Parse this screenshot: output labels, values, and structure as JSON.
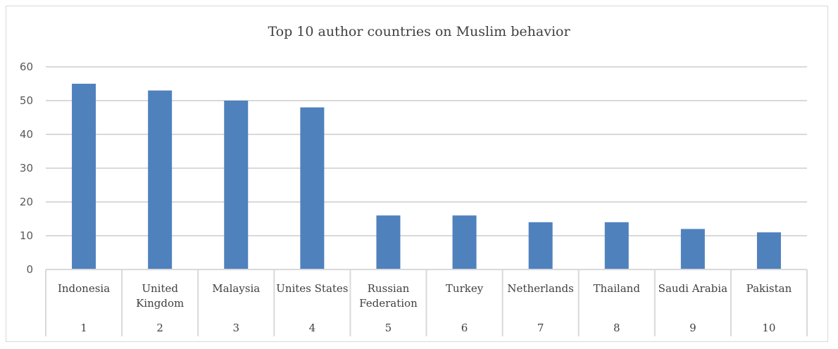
{
  "chart_data": {
    "type": "bar",
    "title": "Top 10 author countries on Muslim behavior",
    "xlabel": "",
    "ylabel": "",
    "categories": [
      {
        "name": [
          "Indonesia"
        ],
        "index": "1"
      },
      {
        "name": [
          "United",
          "Kingdom"
        ],
        "index": "2"
      },
      {
        "name": [
          "Malaysia"
        ],
        "index": "3"
      },
      {
        "name": [
          "Unites States"
        ],
        "index": "4"
      },
      {
        "name": [
          "Russian",
          "Federation"
        ],
        "index": "5"
      },
      {
        "name": [
          "Turkey"
        ],
        "index": "6"
      },
      {
        "name": [
          "Netherlands"
        ],
        "index": "7"
      },
      {
        "name": [
          "Thailand"
        ],
        "index": "8"
      },
      {
        "name": [
          "Saudi Arabia"
        ],
        "index": "9"
      },
      {
        "name": [
          "Pakistan"
        ],
        "index": "10"
      }
    ],
    "values": [
      55,
      53,
      50,
      48,
      16,
      16,
      14,
      14,
      12,
      11
    ],
    "ylim": [
      0,
      60
    ],
    "yticks": [
      0,
      10,
      20,
      30,
      40,
      50,
      60
    ],
    "grid": true,
    "legend": "none",
    "bar_color": "#4f81bd"
  }
}
